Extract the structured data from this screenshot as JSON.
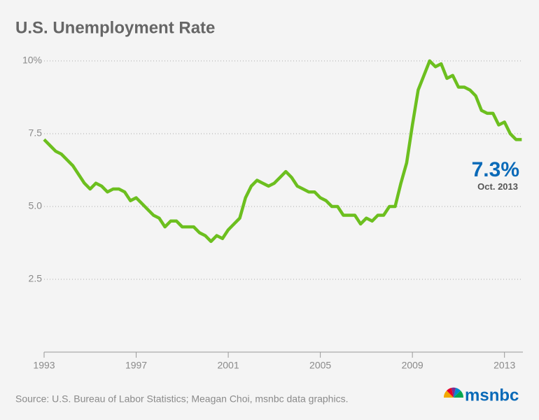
{
  "chart_data": {
    "type": "line",
    "title": "U.S. Unemployment Rate",
    "source": "Source: U.S. Bureau of Labor Statistics; Meagan Choi, msnbc data graphics.",
    "brand": "msnbc",
    "annotation": {
      "value": 7.3,
      "label": "7.3%",
      "note": "Oct. 2013"
    },
    "xlim": [
      1993,
      2013.8
    ],
    "xticks": [
      1993,
      1997,
      2001,
      2005,
      2009,
      2013
    ],
    "ylim": [
      0,
      10
    ],
    "yticks": [
      2.5,
      {
        "value": 5,
        "label": "5.0"
      },
      7.5,
      {
        "value": 10,
        "label": "10%"
      }
    ],
    "grid": true,
    "series": [
      {
        "name": "Unemployment rate",
        "color": "#6cbf1f",
        "x": [
          1993,
          1993.25,
          1993.5,
          1993.75,
          1994,
          1994.25,
          1994.5,
          1994.75,
          1995,
          1995.25,
          1995.5,
          1995.75,
          1996,
          1996.25,
          1996.5,
          1996.75,
          1997,
          1997.25,
          1997.5,
          1997.75,
          1998,
          1998.25,
          1998.5,
          1998.75,
          1999,
          1999.25,
          1999.5,
          1999.75,
          2000,
          2000.25,
          2000.5,
          2000.75,
          2001,
          2001.25,
          2001.5,
          2001.75,
          2002,
          2002.25,
          2002.5,
          2002.75,
          2003,
          2003.25,
          2003.5,
          2003.75,
          2004,
          2004.25,
          2004.5,
          2004.75,
          2005,
          2005.25,
          2005.5,
          2005.75,
          2006,
          2006.25,
          2006.5,
          2006.75,
          2007,
          2007.25,
          2007.5,
          2007.75,
          2008,
          2008.25,
          2008.5,
          2008.75,
          2009,
          2009.25,
          2009.5,
          2009.75,
          2010,
          2010.25,
          2010.5,
          2010.75,
          2011,
          2011.25,
          2011.5,
          2011.75,
          2012,
          2012.25,
          2012.5,
          2012.75,
          2013,
          2013.25,
          2013.5,
          2013.75
        ],
        "values": [
          7.3,
          7.1,
          6.9,
          6.8,
          6.6,
          6.4,
          6.1,
          5.8,
          5.6,
          5.8,
          5.7,
          5.5,
          5.6,
          5.6,
          5.5,
          5.2,
          5.3,
          5.1,
          4.9,
          4.7,
          4.6,
          4.3,
          4.5,
          4.5,
          4.3,
          4.3,
          4.3,
          4.1,
          4.0,
          3.8,
          4.0,
          3.9,
          4.2,
          4.4,
          4.6,
          5.3,
          5.7,
          5.9,
          5.8,
          5.7,
          5.8,
          6.0,
          6.2,
          6.0,
          5.7,
          5.6,
          5.5,
          5.5,
          5.3,
          5.2,
          5.0,
          5.0,
          4.7,
          4.7,
          4.7,
          4.4,
          4.6,
          4.5,
          4.7,
          4.7,
          5.0,
          5.0,
          5.8,
          6.5,
          7.8,
          9.0,
          9.5,
          10.0,
          9.8,
          9.9,
          9.4,
          9.5,
          9.1,
          9.1,
          9.0,
          8.8,
          8.3,
          8.2,
          8.2,
          7.8,
          7.9,
          7.5,
          7.3,
          7.3
        ]
      }
    ]
  }
}
